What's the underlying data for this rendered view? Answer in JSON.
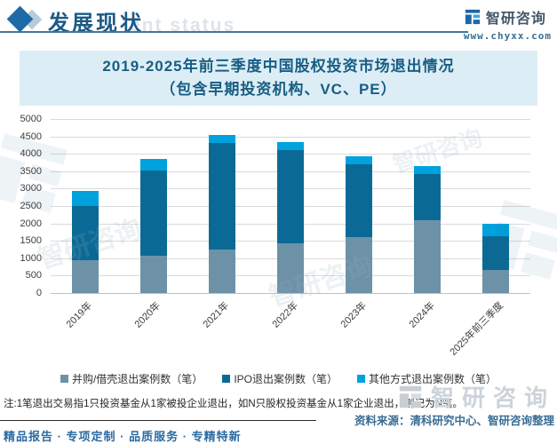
{
  "header": {
    "section_title": "发展现状",
    "ghost_subtitle": "ent status",
    "brand_name": "智研咨询",
    "website": "www.chyxx.com"
  },
  "chart_title": {
    "line1": "2019-2025年前三季度中国股权投资市场退出情况",
    "line2": "（包含早期投资机构、VC、PE）"
  },
  "chart_data": {
    "type": "bar",
    "stacked": true,
    "title": "2019-2025年前三季度中国股权投资市场退出情况（包含早期投资机构、VC、PE）",
    "categories": [
      "2019年",
      "2020年",
      "2021年",
      "2022年",
      "2023年",
      "2024年",
      "2025年前三季度"
    ],
    "series": [
      {
        "name": "并购/借壳退出案例数（笔）",
        "color": "#6d92a8",
        "values": [
          940,
          1060,
          1250,
          1440,
          1610,
          2100,
          670
        ]
      },
      {
        "name": "IPO退出案例数（笔）",
        "color": "#0b6a95",
        "values": [
          1550,
          2470,
          3050,
          2680,
          2100,
          1310,
          960
        ]
      },
      {
        "name": "其他方式退出案例数（笔）",
        "color": "#00a2de",
        "values": [
          440,
          310,
          230,
          210,
          220,
          250,
          370
        ]
      }
    ],
    "totals": [
      2930,
      3840,
      4530,
      4330,
      3930,
      3660,
      2000
    ],
    "xlabel": "",
    "ylabel": "",
    "ylim": [
      0,
      5000
    ],
    "ytick": 500,
    "grid": true,
    "legend_position": "bottom"
  },
  "note": "注:1笔退出交易指1只投资基金从1家被投企业退出，如N只股权投资基金从1家企业退出，则记为N笔。",
  "source": "资料来源：清科研究中心、智研咨询整理",
  "footer_slogan": "精品报告 · 专项定制 · 品质服务 · 专精特新",
  "watermark": {
    "text": "智研咨询"
  },
  "colors": {
    "accent_blue": "#1b5a87",
    "panel_bg": "#ddedf6",
    "title_text": "#175e83",
    "segment_ma": "#6d92a8",
    "segment_ipo": "#0b6a95",
    "segment_other": "#00a2de"
  }
}
